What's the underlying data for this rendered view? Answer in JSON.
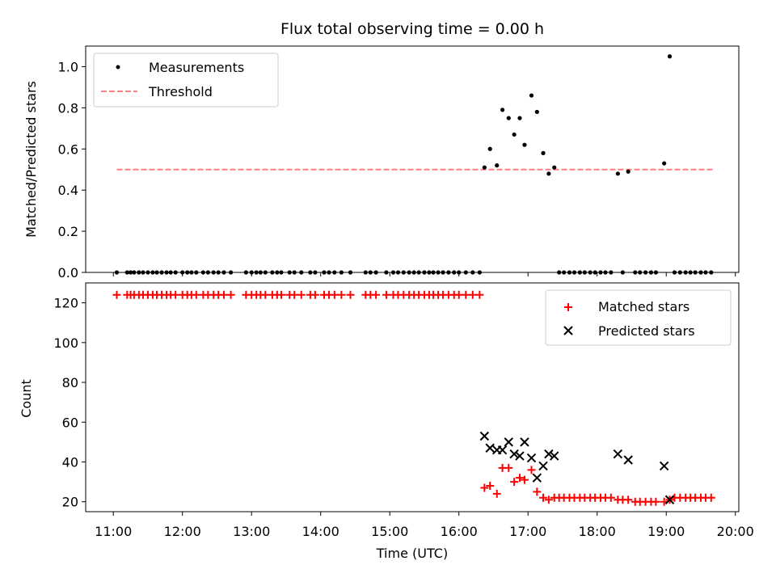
{
  "title": "Flux total observing time = 0.00 h",
  "colors": {
    "measurements": "#000000",
    "threshold": "#ff7f7f",
    "matched": "#ff0000",
    "predicted": "#000000"
  },
  "chart_data": [
    {
      "type": "scatter",
      "panel": "top",
      "ylabel": "Matched/Predicted stars",
      "xlim": [
        10.6,
        20.05
      ],
      "ylim": [
        0,
        1.1
      ],
      "yticks": [
        "0.0",
        "0.2",
        "0.4",
        "0.6",
        "0.8",
        "1.0"
      ],
      "legend": {
        "placement": "upper-left",
        "entries": [
          "Measurements",
          "Threshold"
        ]
      },
      "threshold": {
        "name": "Threshold",
        "value": 0.5,
        "x": [
          11.05,
          19.67
        ]
      },
      "series": [
        {
          "name": "Measurements",
          "x": [
            11.05,
            11.2,
            11.25,
            11.3,
            11.37,
            11.43,
            11.5,
            11.57,
            11.63,
            11.7,
            11.77,
            11.83,
            11.9,
            12.0,
            12.07,
            12.13,
            12.2,
            12.3,
            12.37,
            12.45,
            12.52,
            12.6,
            12.7,
            12.92,
            13.0,
            13.07,
            13.13,
            13.2,
            13.3,
            13.37,
            13.43,
            13.55,
            13.62,
            13.72,
            13.85,
            13.92,
            14.05,
            14.12,
            14.2,
            14.3,
            14.43,
            14.65,
            14.72,
            14.8,
            14.95,
            15.05,
            15.12,
            15.2,
            15.28,
            15.35,
            15.42,
            15.5,
            15.57,
            15.63,
            15.7,
            15.77,
            15.85,
            15.93,
            16.0,
            16.1,
            16.2,
            16.3,
            16.37,
            16.45,
            16.55,
            16.63,
            16.72,
            16.8,
            16.88,
            16.95,
            17.05,
            17.13,
            17.22,
            17.3,
            17.38,
            17.45,
            17.52,
            17.6,
            17.67,
            17.75,
            17.82,
            17.9,
            17.97,
            18.05,
            18.12,
            18.2,
            18.3,
            18.37,
            18.45,
            18.55,
            18.62,
            18.7,
            18.78,
            18.85,
            18.97,
            19.05,
            19.12,
            19.2,
            19.28,
            19.35,
            19.42,
            19.5,
            19.57,
            19.65
          ],
          "y": [
            0,
            0,
            0,
            0,
            0,
            0,
            0,
            0,
            0,
            0,
            0,
            0,
            0,
            0,
            0,
            0,
            0,
            0,
            0,
            0,
            0,
            0,
            0,
            0,
            0,
            0,
            0,
            0,
            0,
            0,
            0,
            0,
            0,
            0,
            0,
            0,
            0,
            0,
            0,
            0,
            0,
            0,
            0,
            0,
            0,
            0,
            0,
            0,
            0,
            0,
            0,
            0,
            0,
            0,
            0,
            0,
            0,
            0,
            0,
            0,
            0,
            0,
            0.51,
            0.6,
            0.52,
            0.79,
            0.75,
            0.67,
            0.75,
            0.62,
            0.86,
            0.78,
            0.58,
            0.48,
            0.51,
            0,
            0,
            0,
            0,
            0,
            0,
            0,
            0,
            0,
            0,
            0,
            0.48,
            0,
            0.49,
            0,
            0,
            0,
            0,
            0,
            0.53,
            1.05,
            0,
            0,
            0,
            0,
            0,
            0,
            0,
            0
          ]
        }
      ]
    },
    {
      "type": "scatter",
      "panel": "bottom",
      "xlabel": "Time (UTC)",
      "ylabel": "Count",
      "xlim": [
        10.6,
        20.05
      ],
      "ylim": [
        15,
        130
      ],
      "xticks": [
        "11:00",
        "12:00",
        "13:00",
        "14:00",
        "15:00",
        "16:00",
        "17:00",
        "18:00",
        "19:00",
        "20:00"
      ],
      "yticks": [
        "20",
        "40",
        "60",
        "80",
        "100",
        "120"
      ],
      "legend": {
        "placement": "upper-right",
        "entries": [
          "Matched stars",
          "Predicted stars"
        ]
      },
      "series": [
        {
          "name": "Matched stars",
          "x": [
            11.05,
            11.2,
            11.25,
            11.3,
            11.37,
            11.43,
            11.5,
            11.57,
            11.63,
            11.7,
            11.77,
            11.83,
            11.9,
            12.0,
            12.07,
            12.13,
            12.2,
            12.3,
            12.37,
            12.45,
            12.52,
            12.6,
            12.7,
            12.92,
            13.0,
            13.07,
            13.13,
            13.2,
            13.3,
            13.37,
            13.43,
            13.55,
            13.62,
            13.72,
            13.85,
            13.92,
            14.05,
            14.12,
            14.2,
            14.3,
            14.43,
            14.65,
            14.72,
            14.8,
            14.95,
            15.05,
            15.12,
            15.2,
            15.28,
            15.35,
            15.42,
            15.5,
            15.57,
            15.63,
            15.7,
            15.77,
            15.85,
            15.93,
            16.0,
            16.1,
            16.2,
            16.3,
            16.37,
            16.45,
            16.55,
            16.63,
            16.72,
            16.8,
            16.88,
            16.95,
            17.05,
            17.13,
            17.22,
            17.3,
            17.38,
            17.45,
            17.52,
            17.6,
            17.67,
            17.75,
            17.82,
            17.9,
            17.97,
            18.05,
            18.12,
            18.2,
            18.3,
            18.37,
            18.45,
            18.55,
            18.62,
            18.7,
            18.78,
            18.85,
            18.97,
            19.05,
            19.12,
            19.2,
            19.28,
            19.35,
            19.42,
            19.5,
            19.57,
            19.65
          ],
          "y": [
            124,
            124,
            124,
            124,
            124,
            124,
            124,
            124,
            124,
            124,
            124,
            124,
            124,
            124,
            124,
            124,
            124,
            124,
            124,
            124,
            124,
            124,
            124,
            124,
            124,
            124,
            124,
            124,
            124,
            124,
            124,
            124,
            124,
            124,
            124,
            124,
            124,
            124,
            124,
            124,
            124,
            124,
            124,
            124,
            124,
            124,
            124,
            124,
            124,
            124,
            124,
            124,
            124,
            124,
            124,
            124,
            124,
            124,
            124,
            124,
            124,
            124,
            27,
            28,
            24,
            37,
            37,
            30,
            32,
            31,
            36,
            25,
            22,
            21,
            22,
            22,
            22,
            22,
            22,
            22,
            22,
            22,
            22,
            22,
            22,
            22,
            21,
            21,
            21,
            20,
            20,
            20,
            20,
            20,
            20,
            21,
            22,
            22,
            22,
            22,
            22,
            22,
            22,
            22
          ]
        },
        {
          "name": "Predicted stars",
          "x": [
            16.37,
            16.45,
            16.55,
            16.63,
            16.72,
            16.8,
            16.88,
            16.95,
            17.05,
            17.13,
            17.22,
            17.3,
            17.38,
            18.3,
            18.45,
            18.97,
            19.05
          ],
          "y": [
            53,
            47,
            46,
            46,
            50,
            44,
            43,
            50,
            42,
            32,
            38,
            44,
            43,
            44,
            41,
            38,
            21
          ]
        }
      ]
    }
  ]
}
